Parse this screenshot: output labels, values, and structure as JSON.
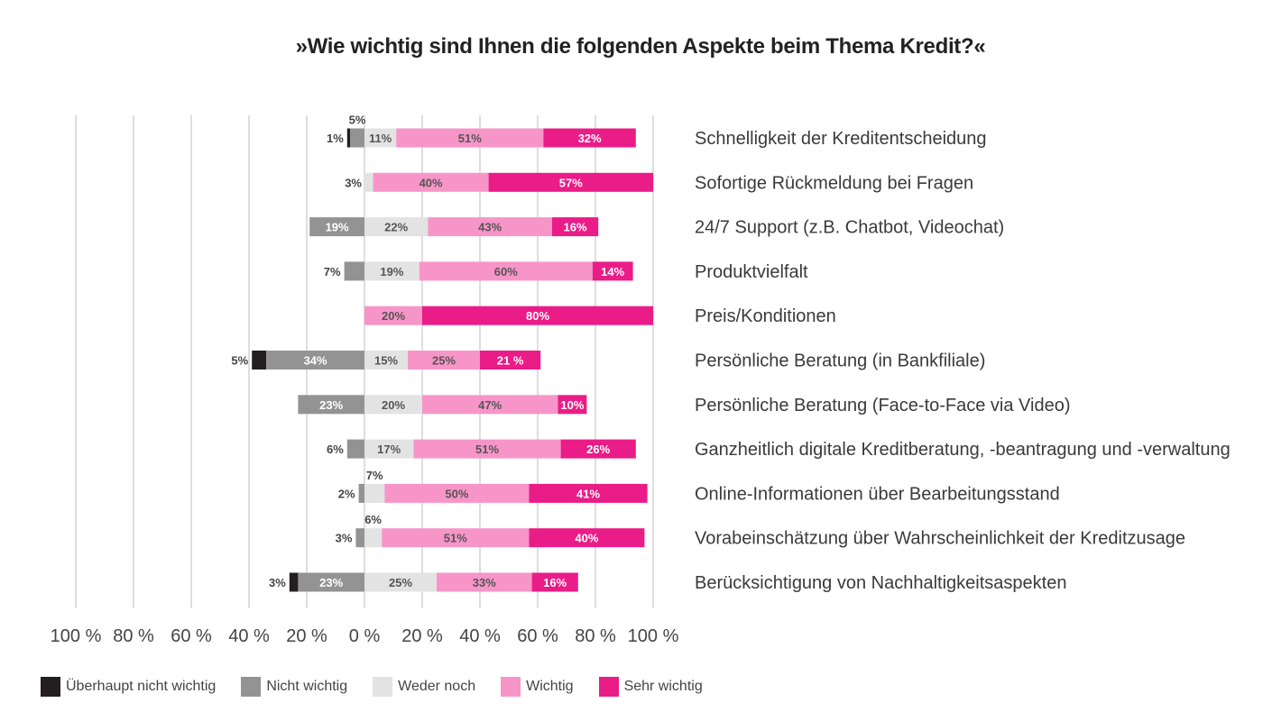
{
  "chart_data": {
    "type": "bar",
    "orientation": "horizontal",
    "stacked": "diverging",
    "title": "»Wie wichtig sind Ihnen die folgenden Aspekte beim Thema Kredit?«",
    "xlim": [
      -100,
      100
    ],
    "x_ticks": [
      "100 %",
      "80 %",
      "60 %",
      "40 %",
      "20 %",
      "0 %",
      "20 %",
      "40 %",
      "60 %",
      "80 %",
      "100 %"
    ],
    "grid": true,
    "legend_position": "bottom-left",
    "categories": [
      "Schnelligkeit der Kreditentscheidung",
      "Sofortige Rückmeldung bei Fragen",
      "24/7 Support (z.B. Chatbot, Videochat)",
      "Produktvielfalt",
      "Preis/Konditionen",
      "Persönliche Beratung (in Bankfiliale)",
      "Persönliche Beratung (Face-to-Face via Video)",
      "Ganzheitlich digitale Kreditberatung, -beantragung und -verwaltung",
      "Online-Informationen über Bearbeitungsstand",
      "Vorabeinschätzung über Wahrscheinlichkeit der Kreditzusage",
      "Berücksichtigung von Nachhaltigkeitsaspekten"
    ],
    "series": [
      {
        "name": "Überhaupt nicht wichtig",
        "color": "#231f20",
        "values": [
          1,
          0,
          0,
          0,
          0,
          5,
          0,
          0,
          0,
          0,
          3
        ],
        "labels": [
          "1%",
          "",
          "",
          "",
          "",
          "5%",
          "",
          "",
          "",
          "",
          "3%"
        ]
      },
      {
        "name": "Nicht wichtig",
        "color": "#939393",
        "values": [
          5,
          0,
          19,
          7,
          0,
          34,
          23,
          6,
          2,
          3,
          23
        ],
        "labels": [
          "5%",
          "",
          "19%",
          "7%",
          "",
          "34%",
          "23%",
          "6%",
          "2%",
          "3%",
          "23%"
        ]
      },
      {
        "name": "Weder noch",
        "color": "#e3e3e3",
        "values": [
          11,
          3,
          22,
          19,
          0,
          15,
          20,
          17,
          7,
          6,
          25
        ],
        "labels": [
          "11%",
          "3%",
          "22%",
          "19%",
          "",
          "15%",
          "20%",
          "17%",
          "7%",
          "6%",
          "25%"
        ]
      },
      {
        "name": "Wichtig",
        "color": "#f795c8",
        "values": [
          51,
          40,
          43,
          60,
          20,
          25,
          47,
          51,
          50,
          51,
          33
        ],
        "labels": [
          "51%",
          "40%",
          "43%",
          "60%",
          "20%",
          "25%",
          "47%",
          "51%",
          "50%",
          "51%",
          "33%"
        ]
      },
      {
        "name": "Sehr wichtig",
        "color": "#ea1c87",
        "values": [
          32,
          57,
          16,
          14,
          80,
          21,
          10,
          26,
          41,
          40,
          16
        ],
        "labels": [
          "32%",
          "57%",
          "16%",
          "14%",
          "80%",
          "21 %",
          "10%",
          "26%",
          "41%",
          "40%",
          "16%"
        ]
      }
    ]
  }
}
